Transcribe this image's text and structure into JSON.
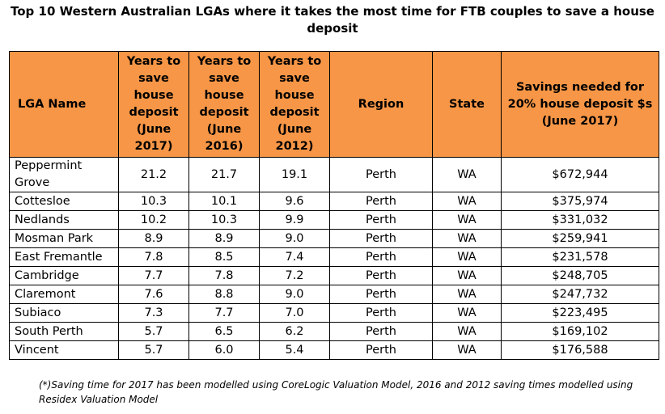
{
  "title": {
    "line1": "Top 10 Western Australian LGAs where it takes the most time for FTB couples to save a house",
    "line2": "deposit"
  },
  "table": {
    "headers": {
      "lga": "LGA Name",
      "y2017": "Years to save house deposit (June 2017)",
      "y2016": "Years to save house deposit (June 2016)",
      "y2012": "Years to save house deposit (June 2012)",
      "region": "Region",
      "state": "State",
      "savings": "Savings needed for 20% house deposit  $s (June 2017)"
    },
    "rows": [
      {
        "lga": "Peppermint Grove",
        "y2017": "21.2",
        "y2016": "21.7",
        "y2012": "19.1",
        "region": "Perth",
        "state": "WA",
        "savings": "$672,944"
      },
      {
        "lga": "Cottesloe",
        "y2017": "10.3",
        "y2016": "10.1",
        "y2012": "9.6",
        "region": "Perth",
        "state": "WA",
        "savings": "$375,974"
      },
      {
        "lga": "Nedlands",
        "y2017": "10.2",
        "y2016": "10.3",
        "y2012": "9.9",
        "region": "Perth",
        "state": "WA",
        "savings": "$331,032"
      },
      {
        "lga": "Mosman Park",
        "y2017": "8.9",
        "y2016": "8.9",
        "y2012": "9.0",
        "region": "Perth",
        "state": "WA",
        "savings": "$259,941"
      },
      {
        "lga": "East Fremantle",
        "y2017": "7.8",
        "y2016": "8.5",
        "y2012": "7.4",
        "region": "Perth",
        "state": "WA",
        "savings": "$231,578"
      },
      {
        "lga": "Cambridge",
        "y2017": "7.7",
        "y2016": "7.8",
        "y2012": "7.2",
        "region": "Perth",
        "state": "WA",
        "savings": "$248,705"
      },
      {
        "lga": "Claremont",
        "y2017": "7.6",
        "y2016": "8.8",
        "y2012": "9.0",
        "region": "Perth",
        "state": "WA",
        "savings": "$247,732"
      },
      {
        "lga": "Subiaco",
        "y2017": "7.3",
        "y2016": "7.7",
        "y2012": "7.0",
        "region": "Perth",
        "state": "WA",
        "savings": "$223,495"
      },
      {
        "lga": "South Perth",
        "y2017": "5.7",
        "y2016": "6.5",
        "y2012": "6.2",
        "region": "Perth",
        "state": "WA",
        "savings": "$169,102"
      },
      {
        "lga": "Vincent",
        "y2017": "5.7",
        "y2016": "6.0",
        "y2012": "5.4",
        "region": "Perth",
        "state": "WA",
        "savings": "$176,588"
      }
    ]
  },
  "note": "(*)Saving time for 2017 has been modelled using CoreLogic Valuation Model, 2016 and 2012 saving times modelled using Residex Valuation Model",
  "colors": {
    "header_bg": "#f79646"
  }
}
